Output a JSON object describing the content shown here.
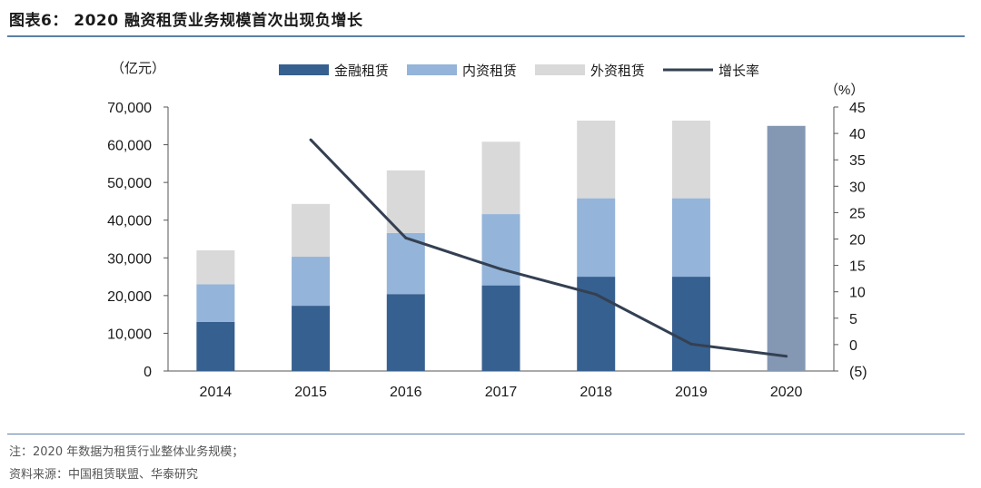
{
  "header": {
    "title": "图表6：  2020 融资租赁业务规模首次出现负增长"
  },
  "footer": {
    "note": "注：2020 年数据为租赁行业整体业务规模；",
    "source": "资料来源：中国租赁联盟、华泰研究"
  },
  "chart_data": {
    "type": "bar",
    "stacked": true,
    "categories": [
      "2014",
      "2015",
      "2016",
      "2017",
      "2018",
      "2019",
      "2020"
    ],
    "y_left_unit": "（亿元）",
    "y_right_unit": "（%）",
    "y_left_lim": [
      0,
      70000
    ],
    "y_left_ticks": [
      "0",
      "10,000",
      "20,000",
      "30,000",
      "40,000",
      "50,000",
      "60,000",
      "70,000"
    ],
    "y_right_lim": [
      -5,
      45
    ],
    "y_right_ticks": [
      "(5)",
      "0",
      "5",
      "10",
      "15",
      "20",
      "25",
      "30",
      "35",
      "40",
      "45"
    ],
    "legend_position": "top",
    "series": [
      {
        "name": "金融租赁",
        "color": "#36608f",
        "values": [
          13000,
          17300,
          20400,
          22700,
          25000,
          25000,
          null
        ]
      },
      {
        "name": "内资租赁",
        "color": "#94b4d9",
        "values": [
          10000,
          13000,
          16200,
          18900,
          20800,
          20800,
          null
        ]
      },
      {
        "name": "外资租赁",
        "color": "#d9d9d9",
        "values": [
          9000,
          14000,
          16600,
          19200,
          20600,
          20600,
          null
        ]
      }
    ],
    "total_2020": {
      "category": "2020",
      "value": 65000,
      "color": "#8497b3"
    },
    "line": {
      "name": "增长率",
      "color": "#344052",
      "values": [
        null,
        38.8,
        20.2,
        14.3,
        9.5,
        0.1,
        -2.2
      ]
    }
  }
}
